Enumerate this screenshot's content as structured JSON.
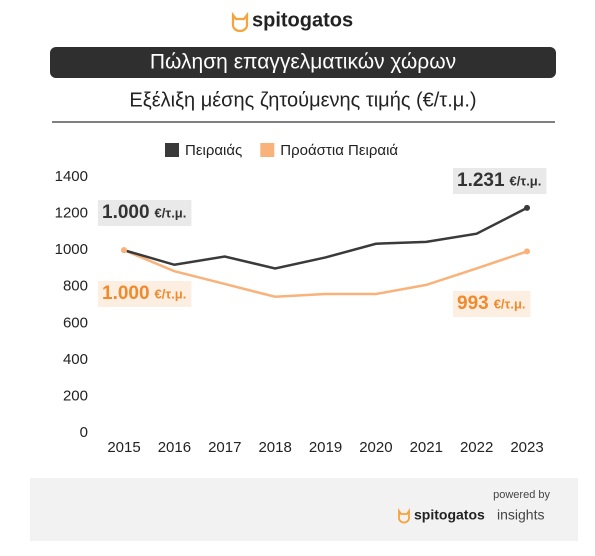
{
  "branding": {
    "logo": "spitogatos",
    "powered_by": "powered by",
    "footer_logo": "spitogatos",
    "footer_suffix": "insights"
  },
  "chart_data": {
    "type": "line",
    "title": "Πώληση επαγγελματικών χώρων",
    "subtitle": "Εξέλιξη μέσης ζητούμενης τιμής (€/τ.μ.)",
    "unit": "€/τ.μ.",
    "categories": [
      "2015",
      "2016",
      "2017",
      "2018",
      "2019",
      "2020",
      "2021",
      "2022",
      "2023"
    ],
    "series": [
      {
        "name": "Πειραιάς",
        "color": "#3a3a3a",
        "label_bg": "#e9e9e9",
        "values": [
          1000,
          920,
          965,
          900,
          960,
          1035,
          1045,
          1090,
          1231
        ],
        "value_labels": [
          "1.000",
          null,
          null,
          null,
          null,
          null,
          null,
          null,
          "1.231"
        ]
      },
      {
        "name": "Προάστια Πειραιά",
        "color": "#f9b27a",
        "label_bg": "#fdeee2",
        "label_color": "#f08a2c",
        "values": [
          1000,
          885,
          815,
          745,
          760,
          760,
          810,
          900,
          993
        ],
        "value_labels": [
          "1.000",
          null,
          null,
          null,
          null,
          null,
          null,
          null,
          "993"
        ]
      }
    ],
    "ylim": [
      0,
      1400
    ],
    "yticks": [
      0,
      200,
      400,
      600,
      800,
      1000,
      1200,
      1400
    ],
    "grid": false
  }
}
